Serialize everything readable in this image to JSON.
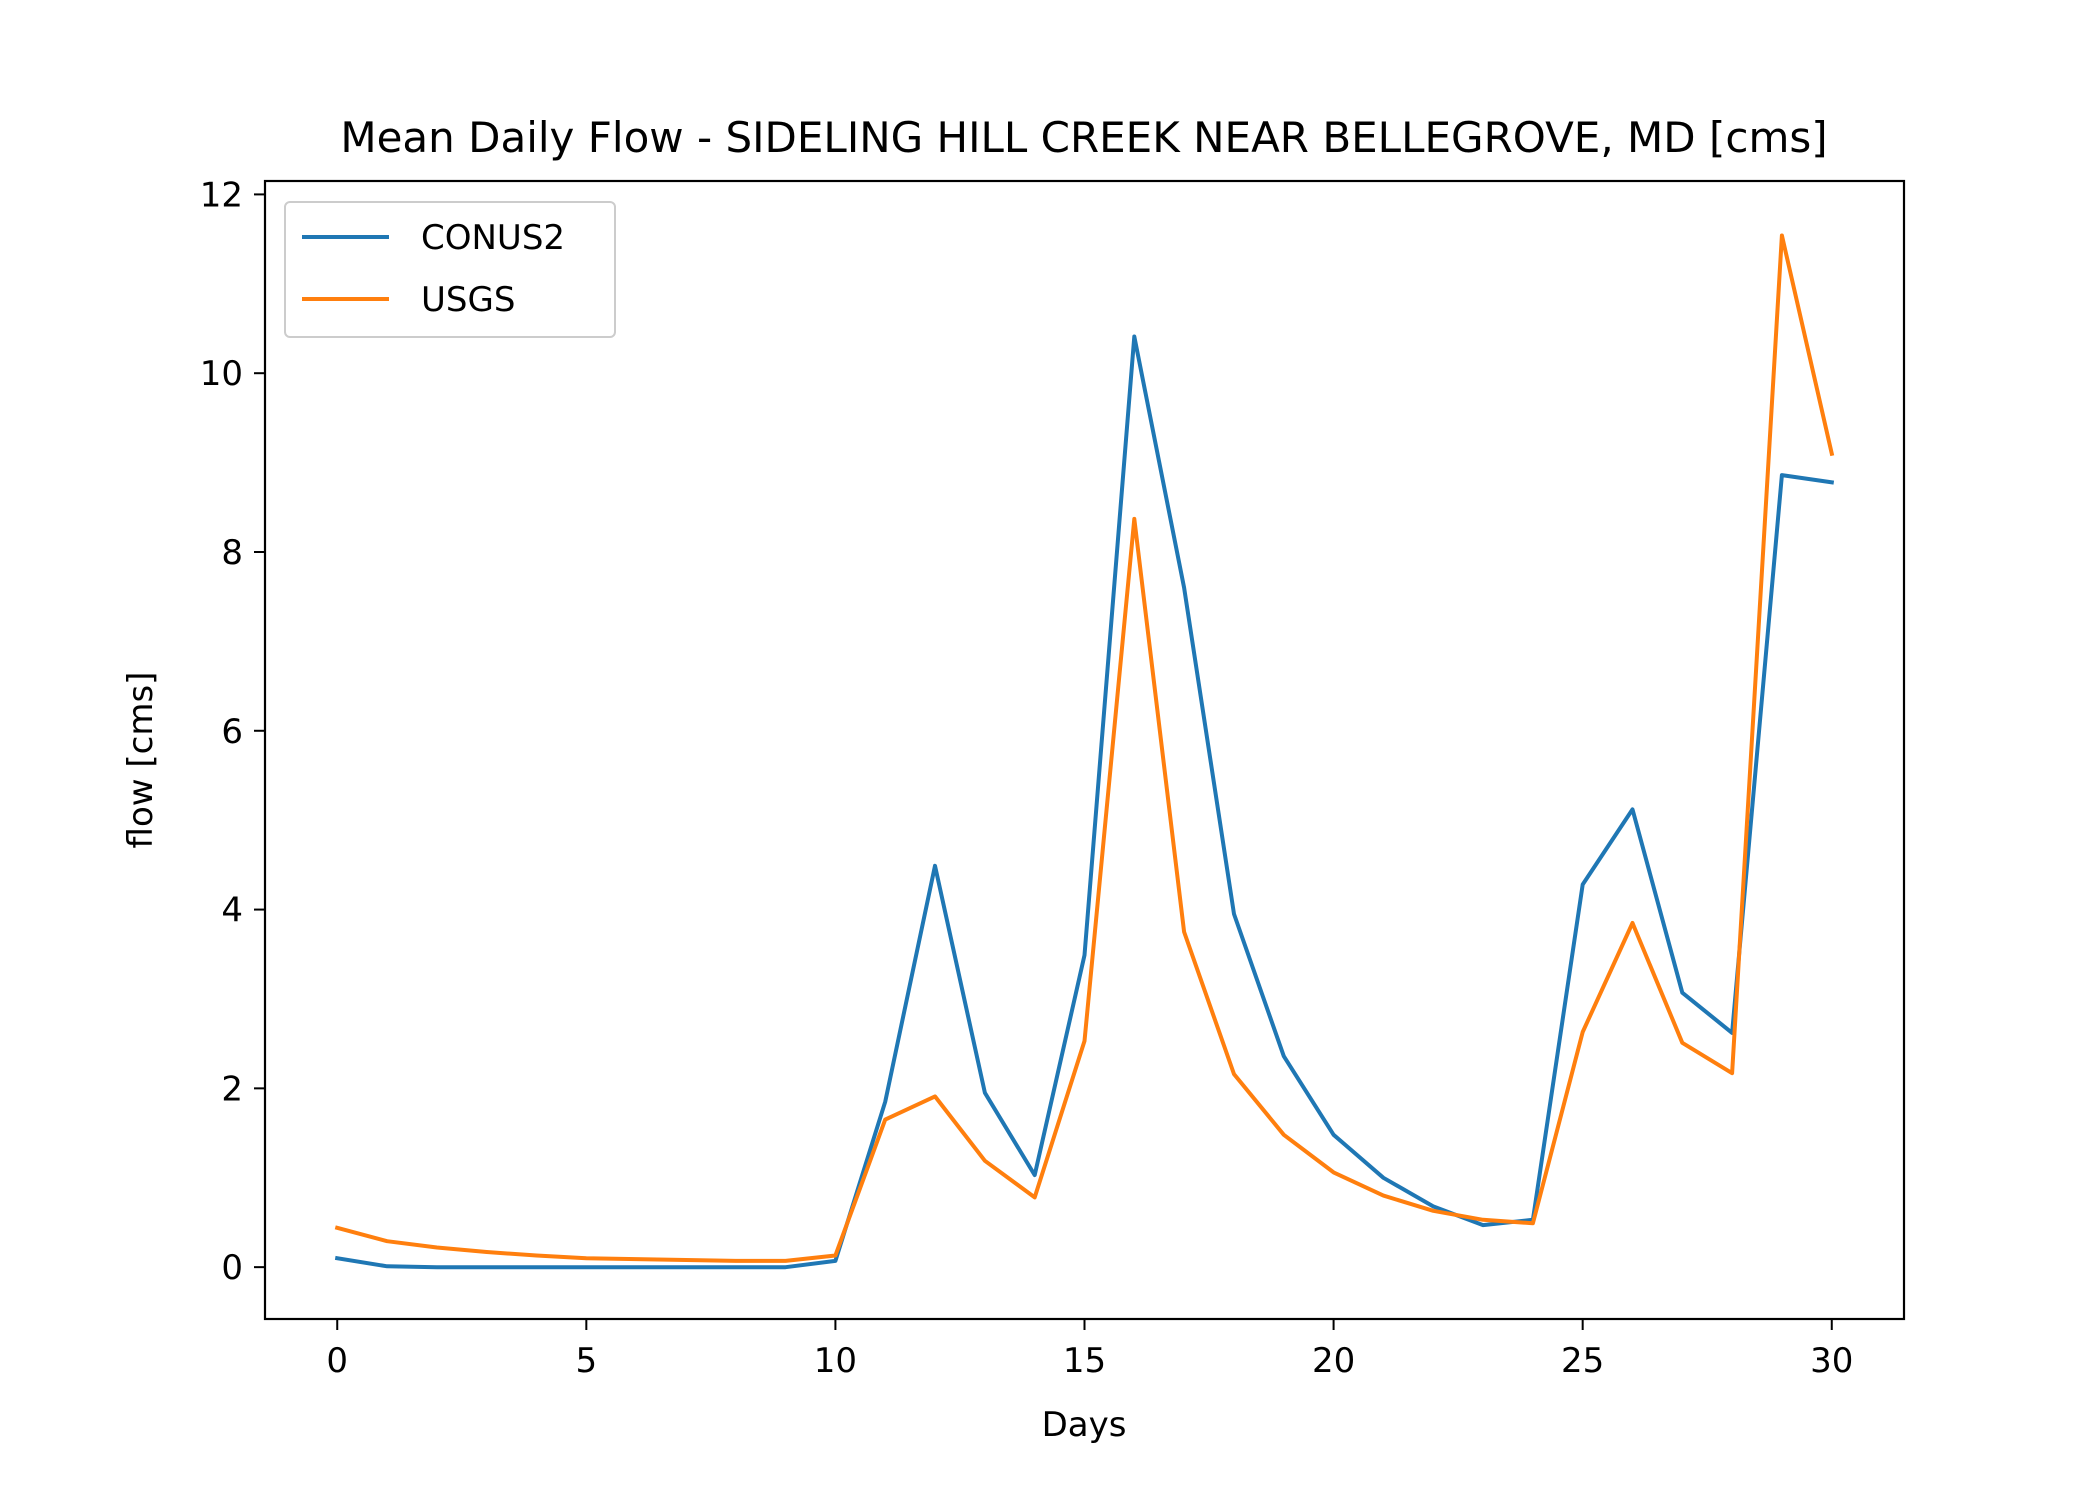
{
  "chart_data": {
    "type": "line",
    "title": "Mean Daily Flow - SIDELING HILL CREEK NEAR BELLEGROVE, MD [cms]",
    "xlabel": "Days",
    "ylabel": "flow [cms]",
    "xlim": [
      -1.45,
      31.45
    ],
    "ylim": [
      -0.58,
      12.15
    ],
    "xticks": [
      0,
      5,
      10,
      15,
      20,
      25,
      30
    ],
    "yticks": [
      0,
      2,
      4,
      6,
      8,
      10,
      12
    ],
    "grid": false,
    "legend_position": "upper left",
    "x": [
      0,
      1,
      2,
      3,
      4,
      5,
      6,
      7,
      8,
      9,
      10,
      11,
      12,
      13,
      14,
      15,
      16,
      17,
      18,
      19,
      20,
      21,
      22,
      23,
      24,
      25,
      26,
      27,
      28,
      29,
      30
    ],
    "series": [
      {
        "name": "CONUS2",
        "color": "#1f77b4",
        "values": [
          0.1,
          0.01,
          0.0,
          0.0,
          0.0,
          0.0,
          0.0,
          0.0,
          0.0,
          0.0,
          0.07,
          1.85,
          4.49,
          1.95,
          1.03,
          3.49,
          10.41,
          7.6,
          3.95,
          2.36,
          1.48,
          1.0,
          0.68,
          0.47,
          0.53,
          4.28,
          5.12,
          3.07,
          2.62,
          8.86,
          8.78
        ]
      },
      {
        "name": "USGS",
        "color": "#ff7f0e",
        "values": [
          0.44,
          0.29,
          0.22,
          0.17,
          0.13,
          0.1,
          0.09,
          0.08,
          0.07,
          0.07,
          0.13,
          1.65,
          1.91,
          1.19,
          0.78,
          2.53,
          8.37,
          3.75,
          2.16,
          1.48,
          1.06,
          0.8,
          0.63,
          0.53,
          0.49,
          2.63,
          3.85,
          2.51,
          2.17,
          11.54,
          9.1
        ]
      }
    ]
  }
}
